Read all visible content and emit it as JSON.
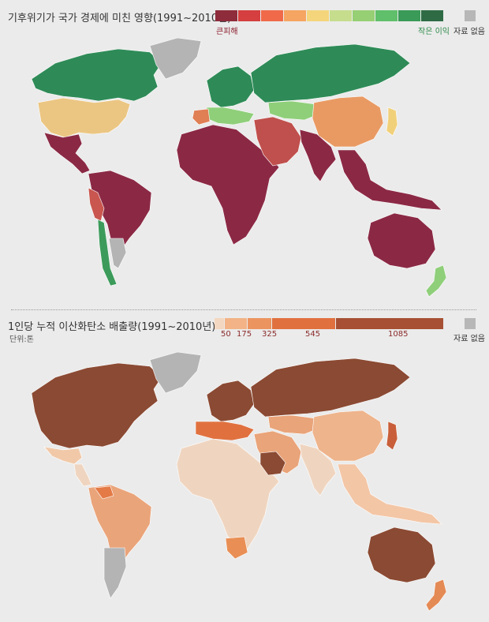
{
  "impact_map": {
    "title": "기후위기가 국가 경제에 미친 영향(1991~2010년)",
    "legend": {
      "colors": [
        "#8e2c3b",
        "#d53f3f",
        "#f06a49",
        "#f5a561",
        "#f4d57c",
        "#c6dd8e",
        "#97cf74",
        "#5fbf6a",
        "#3a9a57",
        "#2e6b45"
      ],
      "left_label": "큰피해",
      "left_color": "#8b1d2c",
      "right_label": "작은 이익",
      "right_color": "#2e8b4a",
      "nodata_label": "자료 없음",
      "nodata_color": "#b7b7b7"
    },
    "region_colors": {
      "north_america_north": "#2e8b57",
      "greenland": "#b4b4b4",
      "usa": "#ebc683",
      "mexico_central": "#8b2945",
      "south_america_main": "#8b2945",
      "peru": "#c9564f",
      "chile": "#3c9b5a",
      "patagonia_gray": "#b4b4b4",
      "africa": "#8b2945",
      "europe_north": "#2e8b57",
      "europe_south": "#8fcf7a",
      "iberia": "#e07e54",
      "russia": "#2e8b57",
      "middle_east": "#c0504d",
      "central_asia": "#8fcf7a",
      "china": "#e99a63",
      "south_asia": "#8b2945",
      "southeast_asia": "#8b2945",
      "japan": "#f1d07a",
      "australia": "#8b2945",
      "new_zealand": "#8fcf7a"
    }
  },
  "emissions_map": {
    "title": "1인당 누적 이산화탄소 배출량(1991~2010년)",
    "unit": "단위:톤",
    "legend": {
      "colors": [
        "#f4d7c0",
        "#f3b387",
        "#ec9460",
        "#e0713f",
        "#a75034"
      ],
      "ticks": [
        "50",
        "175",
        "325",
        "545",
        "1085"
      ],
      "tick_color": "#8b2a2a",
      "nodata_label": "자료 없음",
      "nodata_color": "#b7b7b7"
    },
    "region_colors": {
      "north_america": "#8b4a33",
      "greenland": "#b4b4b4",
      "mexico": "#f1c9a9",
      "central_america": "#efd5c0",
      "south_america_main": "#eaa47a",
      "venezuela": "#e47a46",
      "argentina_south": "#b4b4b4",
      "africa": "#efd5c0",
      "south_africa": "#e98f55",
      "europe": "#8b4a33",
      "europe_mid": "#e0713f",
      "russia": "#8b4a33",
      "middle_east": "#e9a47a",
      "saudi": "#8b4a33",
      "central_asia": "#e9a47a",
      "china": "#eeb48c",
      "japan": "#c85f3a",
      "india": "#efd5c0",
      "southeast_asia": "#f3c6a6",
      "australia": "#8b4a33",
      "new_zealand": "#e48a55"
    }
  }
}
